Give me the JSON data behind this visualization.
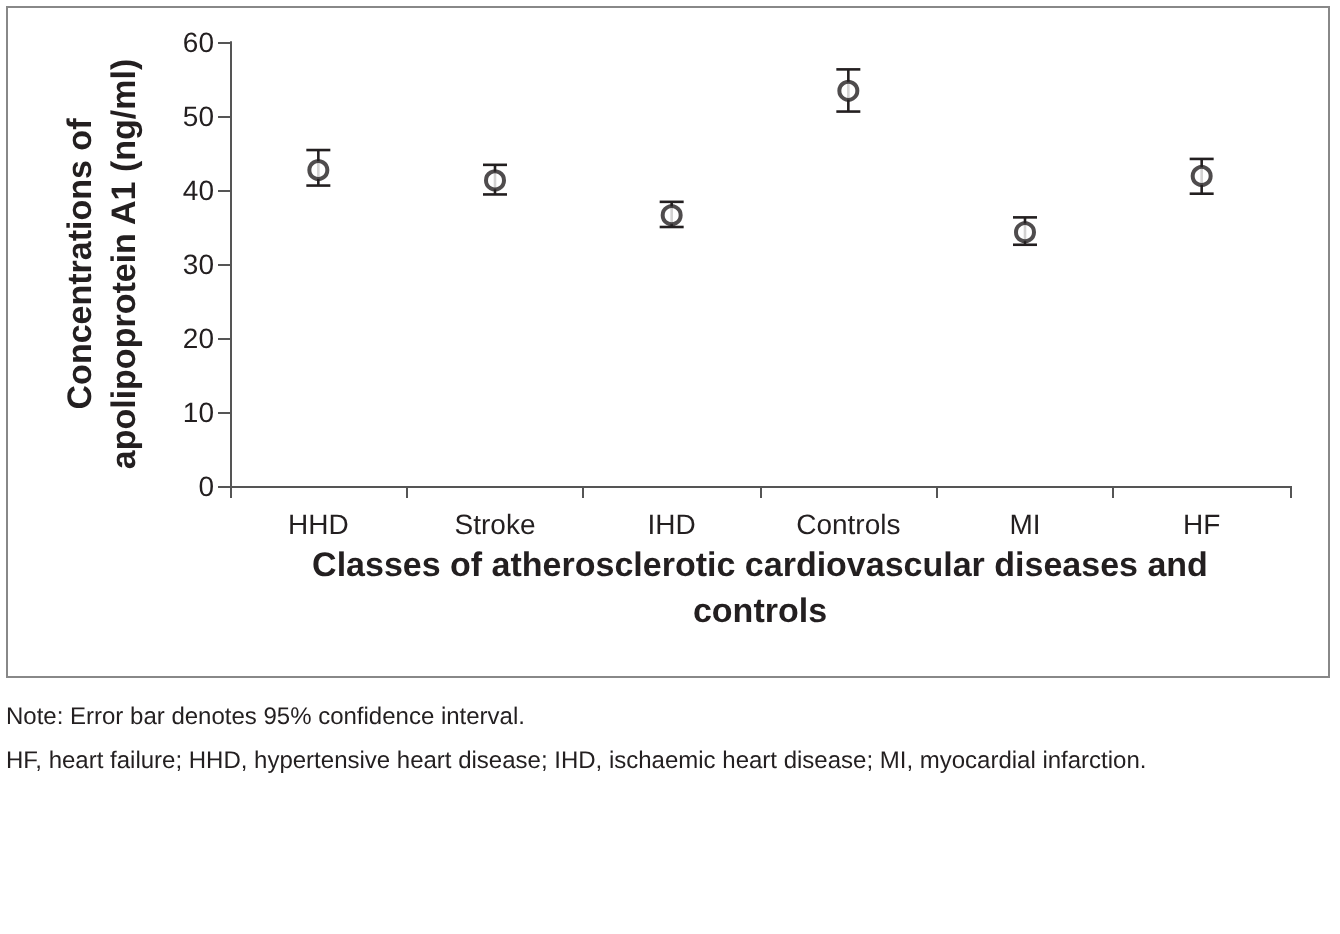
{
  "chart_data": {
    "type": "scatter",
    "xlabel": "Classes of atherosclerotic cardiovascular diseases and controls",
    "ylabel": "Concentrations of\napolipoprotein A1 (ng/ml)",
    "categories": [
      "HHD",
      "Stroke",
      "IHD",
      "Controls",
      "MI",
      "HF"
    ],
    "values": [
      42.7,
      41.3,
      36.6,
      53.4,
      34.3,
      41.9
    ],
    "errors": [
      [
        40.6,
        45.4
      ],
      [
        39.4,
        43.4
      ],
      [
        35.0,
        38.4
      ],
      [
        50.6,
        56.3
      ],
      [
        32.6,
        36.3
      ],
      [
        39.5,
        44.2
      ]
    ],
    "color": "#231f20",
    "marker": "circle",
    "grid": false,
    "ylim": [
      0,
      60
    ],
    "yticks": [
      0,
      10,
      20,
      30,
      40,
      50,
      60
    ],
    "annotations": [
      "Note: Error bar denotes 95% confidence interval.",
      "HF, heart failure; HHD, hypertensive heart disease; IHD, ischaemic heart disease; MI, myocardial infarction."
    ]
  }
}
